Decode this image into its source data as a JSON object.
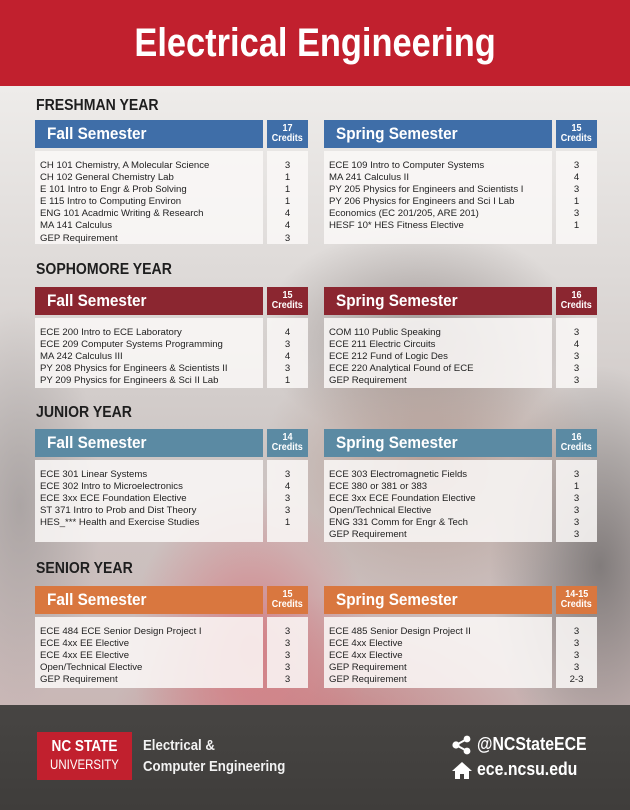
{
  "title": "Electrical Engineering",
  "colors": {
    "title_band": "#c1202e",
    "freshman": "#3f6ea8",
    "sophomore": "#8b2630",
    "junior": "#5b8aa3",
    "senior": "#d9773f",
    "footer": "#434140"
  },
  "years": [
    {
      "label": "FRESHMAN YEAR",
      "fall": {
        "title": "Fall Semester",
        "credits_value": "17",
        "credits_label": "Credits",
        "courses": [
          {
            "name": "CH 101 Chemistry, A Molecular Science",
            "credits": "3"
          },
          {
            "name": "CH 102 General Chemistry Lab",
            "credits": "1"
          },
          {
            "name": "E 101 Intro to Engr & Prob Solving",
            "credits": "1"
          },
          {
            "name": "E 115 Intro to Computing Environ",
            "credits": "1"
          },
          {
            "name": "ENG 101 Acadmic Writing & Research",
            "credits": "4"
          },
          {
            "name": "MA 141 Calculus",
            "credits": "4"
          },
          {
            "name": "GEP Requirement",
            "credits": "3"
          }
        ]
      },
      "spring": {
        "title": "Spring Semester",
        "credits_value": "15",
        "credits_label": "Credits",
        "courses": [
          {
            "name": "ECE 109 Intro to Computer Systems",
            "credits": "3"
          },
          {
            "name": "MA 241 Calculus II",
            "credits": "4"
          },
          {
            "name": "PY 205 Physics for Engineers and Scientists I",
            "credits": "3"
          },
          {
            "name": "PY 206 Physics for Engineers and Sci I Lab",
            "credits": "1"
          },
          {
            "name": "Economics (EC 201/205, ARE 201)",
            "credits": "3"
          },
          {
            "name": "HESF 10* HES Fitness Elective",
            "credits": "1"
          }
        ]
      }
    },
    {
      "label": "SOPHOMORE YEAR",
      "fall": {
        "title": "Fall Semester",
        "credits_value": "15",
        "credits_label": "Credits",
        "courses": [
          {
            "name": "ECE 200 Intro to ECE Laboratory",
            "credits": "4"
          },
          {
            "name": "ECE 209 Computer Systems Programming",
            "credits": "3"
          },
          {
            "name": "MA 242 Calculus III",
            "credits": "4"
          },
          {
            "name": "PY 208 Physics for Engineers & Scientists II",
            "credits": "3"
          },
          {
            "name": "PY 209 Physics for Engineers & Sci II Lab",
            "credits": "1"
          }
        ]
      },
      "spring": {
        "title": "Spring Semester",
        "credits_value": "16",
        "credits_label": "Credits",
        "courses": [
          {
            "name": "COM 110 Public Speaking",
            "credits": "3"
          },
          {
            "name": "ECE 211 Electric Circuits",
            "credits": "4"
          },
          {
            "name": "ECE 212 Fund of Logic Des",
            "credits": "3"
          },
          {
            "name": "ECE 220 Analytical Found of ECE",
            "credits": "3"
          },
          {
            "name": "GEP Requirement",
            "credits": "3"
          }
        ]
      }
    },
    {
      "label": "JUNIOR YEAR",
      "fall": {
        "title": "Fall Semester",
        "credits_value": "14",
        "credits_label": "Credits",
        "courses": [
          {
            "name": "ECE 301 Linear Systems",
            "credits": "3"
          },
          {
            "name": "ECE 302 Intro to Microelectronics",
            "credits": "4"
          },
          {
            "name": "ECE 3xx ECE Foundation Elective",
            "credits": "3"
          },
          {
            "name": "ST 371 Intro to Prob and Dist Theory",
            "credits": "3"
          },
          {
            "name": "HES_*** Health and Exercise Studies",
            "credits": "1"
          }
        ]
      },
      "spring": {
        "title": "Spring Semester",
        "credits_value": "16",
        "credits_label": "Credits",
        "courses": [
          {
            "name": "ECE 303 Electromagnetic Fields",
            "credits": "3"
          },
          {
            "name": "ECE 380 or 381 or 383",
            "credits": "1"
          },
          {
            "name": "ECE 3xx ECE Foundation Elective",
            "credits": "3"
          },
          {
            "name": "Open/Technical Elective",
            "credits": "3"
          },
          {
            "name": "ENG 331 Comm for Engr & Tech",
            "credits": "3"
          },
          {
            "name": "GEP Requirement",
            "credits": "3"
          }
        ]
      }
    },
    {
      "label": "SENIOR YEAR",
      "fall": {
        "title": "Fall Semester",
        "credits_value": "15",
        "credits_label": "Credits",
        "courses": [
          {
            "name": "ECE 484 ECE Senior Design Project I",
            "credits": "3"
          },
          {
            "name": "ECE 4xx EE Elective",
            "credits": "3"
          },
          {
            "name": "ECE 4xx EE Elective",
            "credits": "3"
          },
          {
            "name": "Open/Technical Elective",
            "credits": "3"
          },
          {
            "name": "GEP Requirement",
            "credits": "3"
          }
        ]
      },
      "spring": {
        "title": "Spring Semester",
        "credits_value": "14-15",
        "credits_label": "Credits",
        "courses": [
          {
            "name": "ECE 485 Senior Design Project II",
            "credits": "3"
          },
          {
            "name": "ECE 4xx Elective",
            "credits": "3"
          },
          {
            "name": "ECE 4xx Elective",
            "credits": "3"
          },
          {
            "name": "GEP Requirement",
            "credits": "3"
          },
          {
            "name": "GEP Requirement",
            "credits": "2-3"
          }
        ]
      }
    }
  ],
  "footer": {
    "logo_line1": "NC STATE",
    "logo_line2": "UNIVERSITY",
    "dept_line1": "Electrical &",
    "dept_line2": "Computer Engineering",
    "social_icon": "share-icon",
    "social_handle": "@NCStateECE",
    "web_icon": "home-icon",
    "website": "ece.ncsu.edu"
  }
}
